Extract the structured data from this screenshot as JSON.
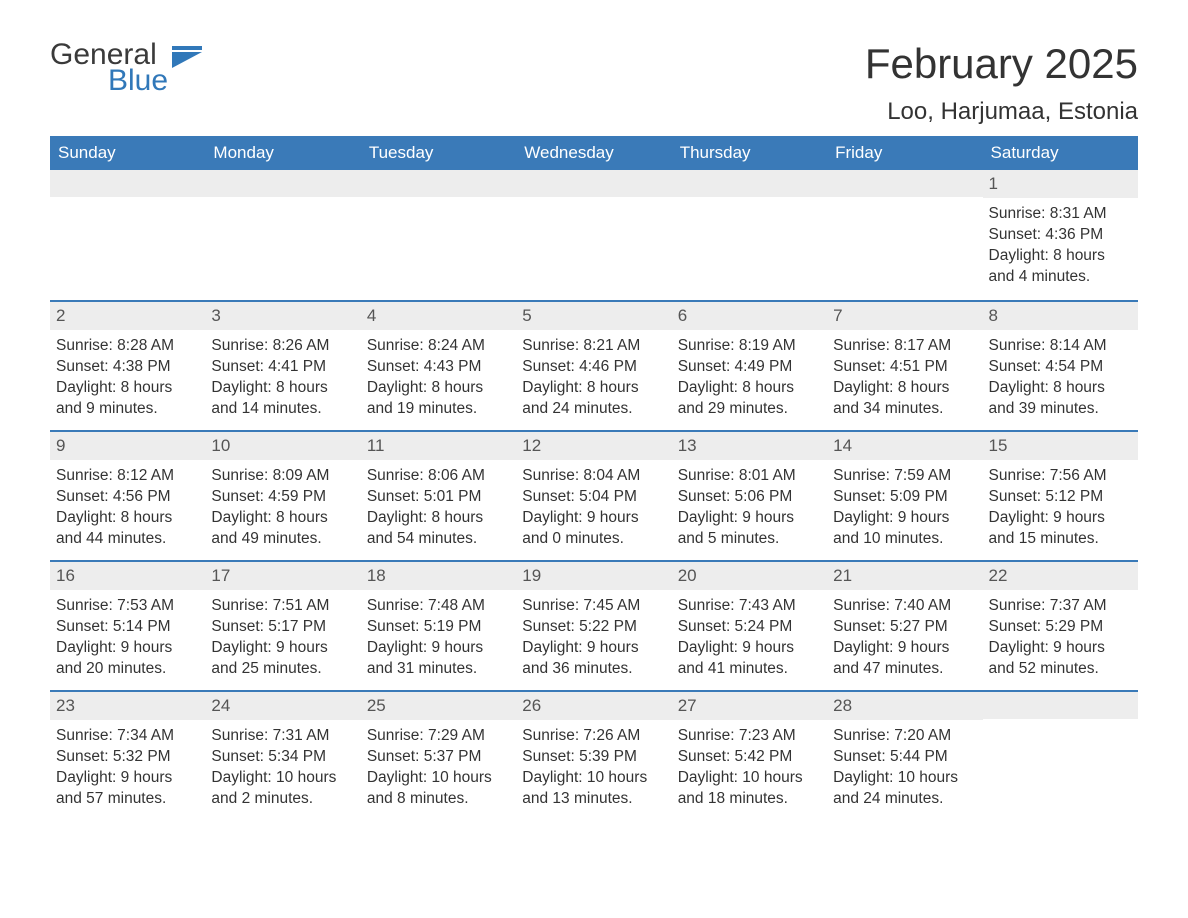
{
  "logo": {
    "word1": "General",
    "word2": "Blue",
    "icon_color": "#3178b9"
  },
  "header": {
    "month_title": "February 2025",
    "location": "Loo, Harjumaa, Estonia"
  },
  "colors": {
    "header_bg": "#3a7ab8",
    "header_text": "#ffffff",
    "row_border": "#3a7ab8",
    "daynum_bg": "#ededed",
    "body_text": "#333333",
    "page_bg": "#ffffff"
  },
  "weekdays": [
    "Sunday",
    "Monday",
    "Tuesday",
    "Wednesday",
    "Thursday",
    "Friday",
    "Saturday"
  ],
  "labels": {
    "sunrise": "Sunrise:",
    "sunset": "Sunset:",
    "daylight": "Daylight:"
  },
  "weeks": [
    [
      null,
      null,
      null,
      null,
      null,
      null,
      {
        "n": "1",
        "sr": "8:31 AM",
        "ss": "4:36 PM",
        "dl": "8 hours and 4 minutes."
      }
    ],
    [
      {
        "n": "2",
        "sr": "8:28 AM",
        "ss": "4:38 PM",
        "dl": "8 hours and 9 minutes."
      },
      {
        "n": "3",
        "sr": "8:26 AM",
        "ss": "4:41 PM",
        "dl": "8 hours and 14 minutes."
      },
      {
        "n": "4",
        "sr": "8:24 AM",
        "ss": "4:43 PM",
        "dl": "8 hours and 19 minutes."
      },
      {
        "n": "5",
        "sr": "8:21 AM",
        "ss": "4:46 PM",
        "dl": "8 hours and 24 minutes."
      },
      {
        "n": "6",
        "sr": "8:19 AM",
        "ss": "4:49 PM",
        "dl": "8 hours and 29 minutes."
      },
      {
        "n": "7",
        "sr": "8:17 AM",
        "ss": "4:51 PM",
        "dl": "8 hours and 34 minutes."
      },
      {
        "n": "8",
        "sr": "8:14 AM",
        "ss": "4:54 PM",
        "dl": "8 hours and 39 minutes."
      }
    ],
    [
      {
        "n": "9",
        "sr": "8:12 AM",
        "ss": "4:56 PM",
        "dl": "8 hours and 44 minutes."
      },
      {
        "n": "10",
        "sr": "8:09 AM",
        "ss": "4:59 PM",
        "dl": "8 hours and 49 minutes."
      },
      {
        "n": "11",
        "sr": "8:06 AM",
        "ss": "5:01 PM",
        "dl": "8 hours and 54 minutes."
      },
      {
        "n": "12",
        "sr": "8:04 AM",
        "ss": "5:04 PM",
        "dl": "9 hours and 0 minutes."
      },
      {
        "n": "13",
        "sr": "8:01 AM",
        "ss": "5:06 PM",
        "dl": "9 hours and 5 minutes."
      },
      {
        "n": "14",
        "sr": "7:59 AM",
        "ss": "5:09 PM",
        "dl": "9 hours and 10 minutes."
      },
      {
        "n": "15",
        "sr": "7:56 AM",
        "ss": "5:12 PM",
        "dl": "9 hours and 15 minutes."
      }
    ],
    [
      {
        "n": "16",
        "sr": "7:53 AM",
        "ss": "5:14 PM",
        "dl": "9 hours and 20 minutes."
      },
      {
        "n": "17",
        "sr": "7:51 AM",
        "ss": "5:17 PM",
        "dl": "9 hours and 25 minutes."
      },
      {
        "n": "18",
        "sr": "7:48 AM",
        "ss": "5:19 PM",
        "dl": "9 hours and 31 minutes."
      },
      {
        "n": "19",
        "sr": "7:45 AM",
        "ss": "5:22 PM",
        "dl": "9 hours and 36 minutes."
      },
      {
        "n": "20",
        "sr": "7:43 AM",
        "ss": "5:24 PM",
        "dl": "9 hours and 41 minutes."
      },
      {
        "n": "21",
        "sr": "7:40 AM",
        "ss": "5:27 PM",
        "dl": "9 hours and 47 minutes."
      },
      {
        "n": "22",
        "sr": "7:37 AM",
        "ss": "5:29 PM",
        "dl": "9 hours and 52 minutes."
      }
    ],
    [
      {
        "n": "23",
        "sr": "7:34 AM",
        "ss": "5:32 PM",
        "dl": "9 hours and 57 minutes."
      },
      {
        "n": "24",
        "sr": "7:31 AM",
        "ss": "5:34 PM",
        "dl": "10 hours and 2 minutes."
      },
      {
        "n": "25",
        "sr": "7:29 AM",
        "ss": "5:37 PM",
        "dl": "10 hours and 8 minutes."
      },
      {
        "n": "26",
        "sr": "7:26 AM",
        "ss": "5:39 PM",
        "dl": "10 hours and 13 minutes."
      },
      {
        "n": "27",
        "sr": "7:23 AM",
        "ss": "5:42 PM",
        "dl": "10 hours and 18 minutes."
      },
      {
        "n": "28",
        "sr": "7:20 AM",
        "ss": "5:44 PM",
        "dl": "10 hours and 24 minutes."
      },
      null
    ]
  ]
}
